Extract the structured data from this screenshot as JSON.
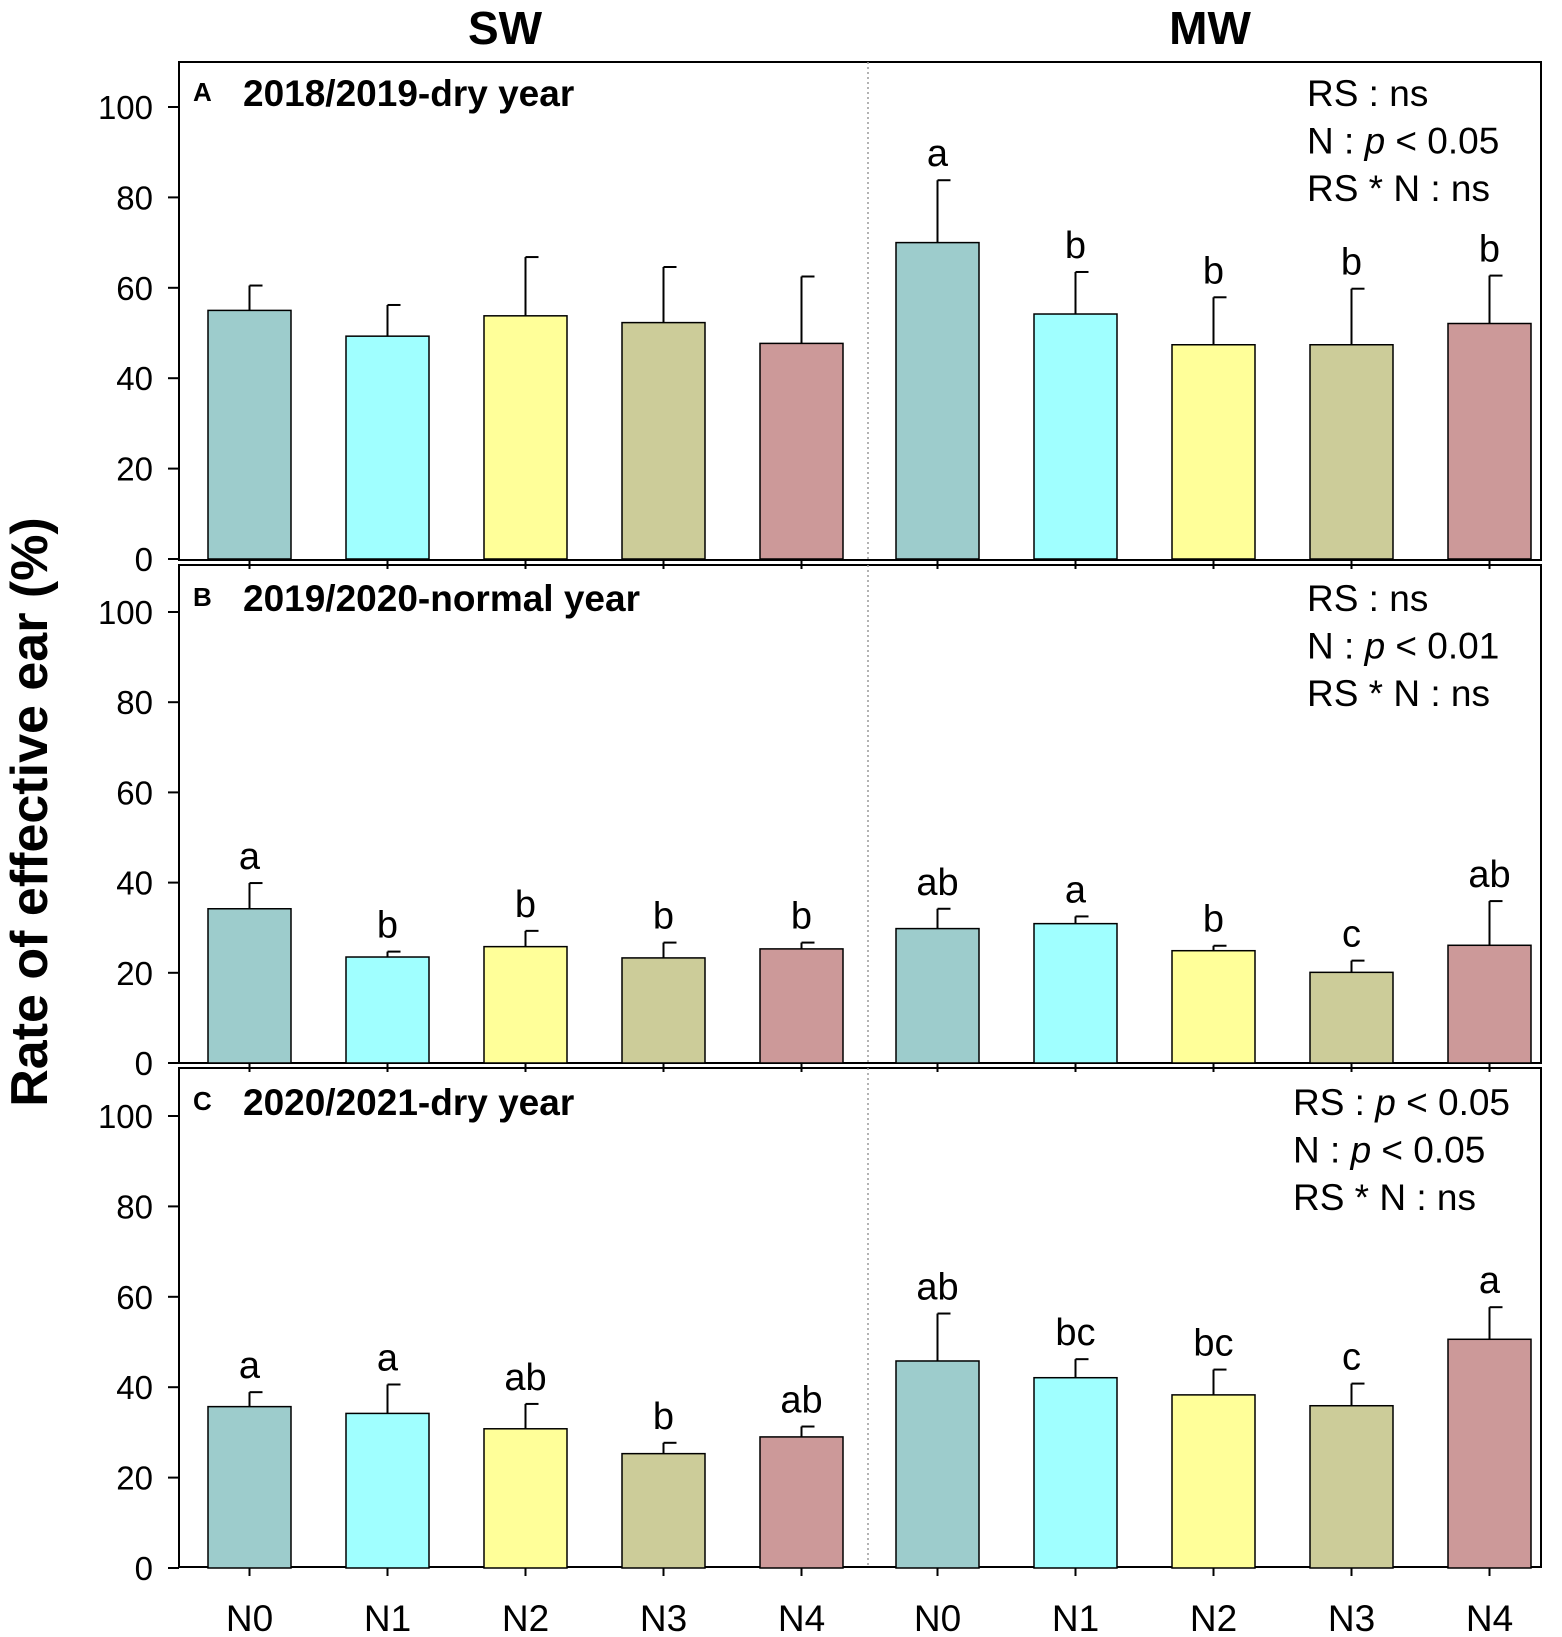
{
  "chart_data": {
    "type": "bar",
    "ylabel": "Rate of effective ear (%)",
    "ylim": [
      0,
      110
    ],
    "yticks": [
      0,
      20,
      40,
      60,
      80,
      100
    ],
    "groups": [
      "SW",
      "MW"
    ],
    "categories": [
      "N0",
      "N1",
      "N2",
      "N3",
      "N4"
    ],
    "colors": [
      "#9dcccc",
      "#a0ffff",
      "#ffff99",
      "#cccc99",
      "#cc9999"
    ],
    "panels": [
      {
        "label": "A",
        "title": "2018/2019-dry year",
        "stats": [
          "RS : ns",
          "N : p < 0.05",
          "RS * N : ns"
        ],
        "series": [
          {
            "name": "SW",
            "values": [
              55,
              49.3,
              53.8,
              52.3,
              47.7
            ],
            "errors": [
              5.5,
              6.9,
              13,
              12.3,
              14.8
            ],
            "letters": [
              "",
              "",
              "",
              "",
              ""
            ]
          },
          {
            "name": "MW",
            "values": [
              70,
              54.2,
              47.4,
              47.4,
              52.1
            ],
            "errors": [
              13.8,
              9.3,
              10.5,
              12.4,
              10.6
            ],
            "letters": [
              "a",
              "b",
              "b",
              "b",
              "b"
            ]
          }
        ]
      },
      {
        "label": "B",
        "title": "2019/2020-normal year",
        "stats": [
          "RS : ns",
          "N : p < 0.01",
          "RS * N : ns"
        ],
        "series": [
          {
            "name": "SW",
            "values": [
              34.2,
              23.5,
              25.8,
              23.3,
              25.3
            ],
            "errors": [
              5.7,
              1.2,
              3.5,
              3.4,
              1.4
            ],
            "letters": [
              "a",
              "b",
              "b",
              "b",
              "b"
            ]
          },
          {
            "name": "MW",
            "values": [
              29.8,
              30.9,
              24.9,
              20.1,
              26.1
            ],
            "errors": [
              4.4,
              1.6,
              1.1,
              2.6,
              9.8
            ],
            "letters": [
              "ab",
              "a",
              "b",
              "c",
              "ab"
            ]
          }
        ]
      },
      {
        "label": "C",
        "title": "2020/2021-dry year",
        "stats": [
          "RS : p < 0.05",
          "N : p < 0.05",
          "RS * N : ns"
        ],
        "series": [
          {
            "name": "SW",
            "values": [
              35.7,
              34.2,
              30.8,
              25.3,
              29
            ],
            "errors": [
              3.2,
              6.4,
              5.5,
              2.4,
              2.3
            ],
            "letters": [
              "a",
              "a",
              "ab",
              "b",
              "ab"
            ]
          },
          {
            "name": "MW",
            "values": [
              45.8,
              42.1,
              38.3,
              35.9,
              50.6
            ],
            "errors": [
              10.5,
              4.1,
              5.6,
              4.9,
              7.1
            ],
            "letters": [
              "ab",
              "bc",
              "bc",
              "c",
              "a"
            ]
          }
        ]
      }
    ]
  }
}
